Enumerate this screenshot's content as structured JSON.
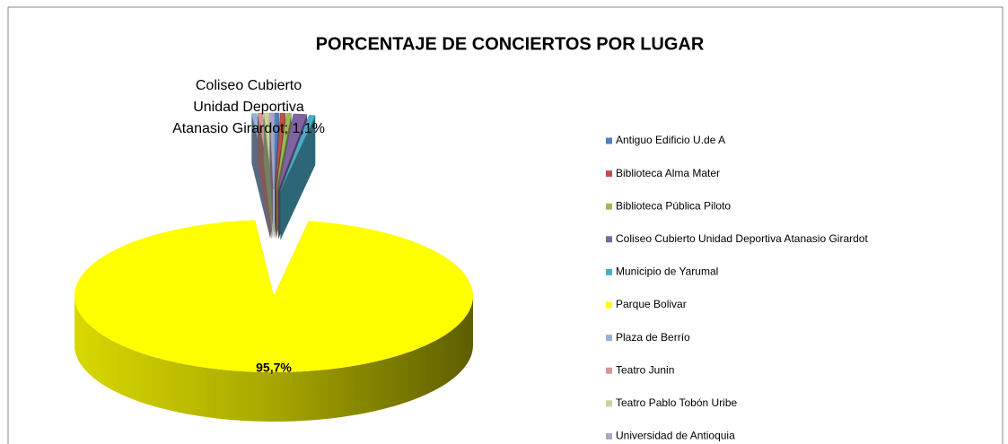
{
  "chart_data": {
    "type": "pie",
    "title": "PORCENTAJE DE CONCIERTOS POR LUGAR",
    "categories": [
      "Antiguo Edificio U.de A",
      "Biblioteca Alma Mater",
      "Biblioteca Pública Piloto",
      "Coliseo Cubierto Unidad Deportiva Atanasio Girardot",
      "Municipio de Yarumal",
      "Parque Bolivar",
      "Plaza de Berrío",
      "Teatro Junin",
      "Teatro Pablo Tobón Uribe",
      "Universidad de Antioquia"
    ],
    "values": [
      0.4,
      0.4,
      0.4,
      1.1,
      0.5,
      95.7,
      0.4,
      0.4,
      0.4,
      0.3
    ],
    "value_labels": [
      null,
      null,
      null,
      "Coliseo Cubierto\nUnidad Deportiva\nAtanasio Girardot; 1,1%",
      null,
      "95,7%",
      null,
      null,
      null,
      null
    ],
    "colors": [
      "#4F81BD",
      "#C0504D",
      "#9BBB59",
      "#8064A2",
      "#4BACC6",
      "#FFFF00",
      "#95B3D7",
      "#D99694",
      "#C3D69B",
      "#B3A2C7"
    ],
    "legend": "right",
    "three_d": true
  }
}
